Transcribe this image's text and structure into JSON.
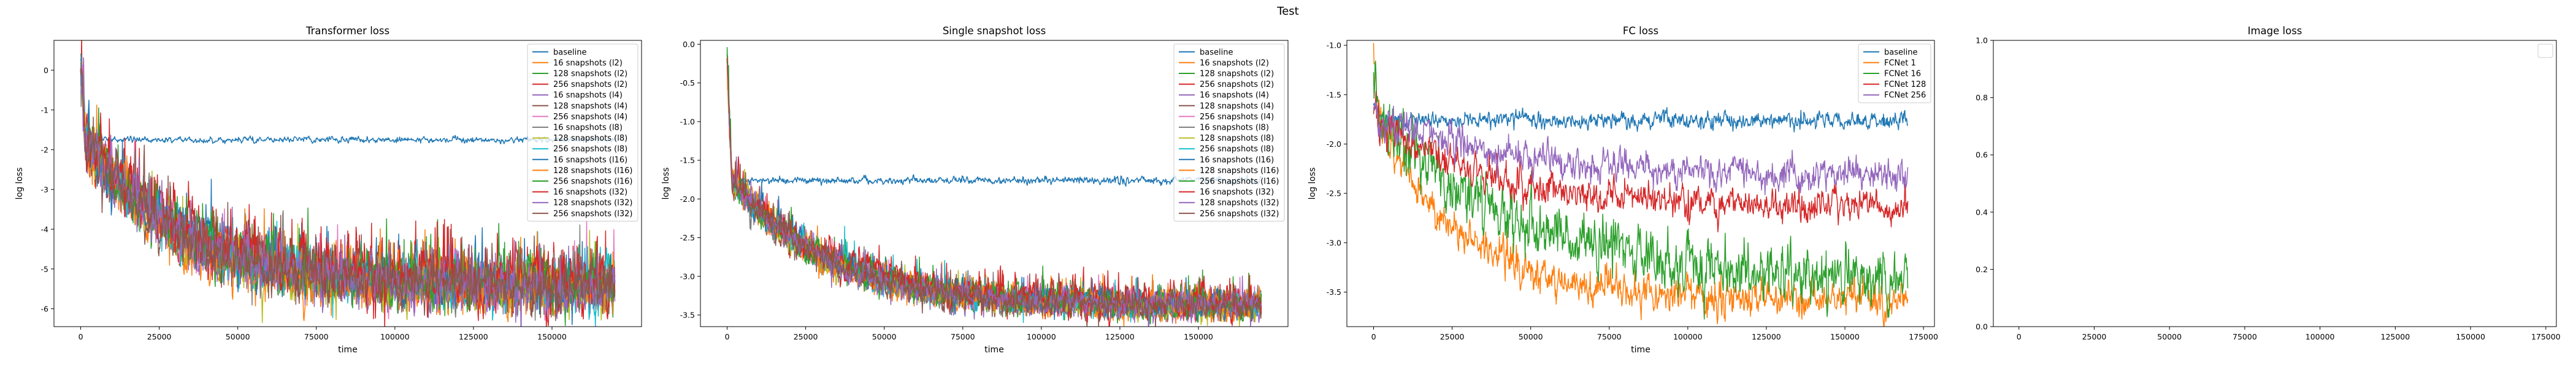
{
  "figure": {
    "suptitle": "Test"
  },
  "colors": {
    "tab10": [
      "#1f77b4",
      "#ff7f0e",
      "#2ca02c",
      "#d62728",
      "#9467bd",
      "#8c564b",
      "#e377c2",
      "#7f7f7f",
      "#bcbd22",
      "#17becf"
    ]
  },
  "chart_data": [
    {
      "type": "line",
      "title": "Transformer loss",
      "xlabel": "time",
      "ylabel": "log loss",
      "xlim": [
        -8500,
        178500
      ],
      "ylim": [
        -6.45,
        0.75
      ],
      "xticks": [
        0,
        25000,
        50000,
        75000,
        100000,
        125000,
        150000
      ],
      "yticks": [
        0,
        -1,
        -2,
        -3,
        -4,
        -5,
        -6
      ],
      "legend": "top-right",
      "x_range": [
        0,
        170000
      ],
      "series": [
        {
          "name": "baseline",
          "color": "#1f77b4",
          "start": 0.3,
          "plateau": -1.72,
          "final": -1.75,
          "tau": 4000,
          "noise": 0.03,
          "spikes": 0.0
        },
        {
          "name": "16 snapshots (l2)",
          "color": "#ff7f0e",
          "start": 0.35,
          "plateau": -1.75,
          "final": -5.55,
          "tau": 28000,
          "noise": 0.25,
          "spikes": 0.06
        },
        {
          "name": "128 snapshots (l2)",
          "color": "#2ca02c",
          "start": 0.3,
          "plateau": -1.75,
          "final": -5.45,
          "tau": 30000,
          "noise": 0.25,
          "spikes": 0.06
        },
        {
          "name": "256 snapshots (l2)",
          "color": "#d62728",
          "start": 0.32,
          "plateau": -1.75,
          "final": -5.35,
          "tau": 32000,
          "noise": 0.28,
          "spikes": 0.08
        },
        {
          "name": "16 snapshots (l4)",
          "color": "#9467bd",
          "start": 0.3,
          "plateau": -1.75,
          "final": -5.5,
          "tau": 29000,
          "noise": 0.25,
          "spikes": 0.06
        },
        {
          "name": "128 snapshots (l4)",
          "color": "#8c564b",
          "start": 0.3,
          "plateau": -1.75,
          "final": -5.45,
          "tau": 30000,
          "noise": 0.25,
          "spikes": 0.06
        },
        {
          "name": "256 snapshots (l4)",
          "color": "#e377c2",
          "start": 0.3,
          "plateau": -1.75,
          "final": -5.4,
          "tau": 31000,
          "noise": 0.25,
          "spikes": 0.06
        },
        {
          "name": "16 snapshots (l8)",
          "color": "#7f7f7f",
          "start": 0.3,
          "plateau": -1.75,
          "final": -5.5,
          "tau": 30000,
          "noise": 0.25,
          "spikes": 0.06
        },
        {
          "name": "128 snapshots (l8)",
          "color": "#bcbd22",
          "start": 0.3,
          "plateau": -1.75,
          "final": -5.5,
          "tau": 29000,
          "noise": 0.25,
          "spikes": 0.06
        },
        {
          "name": "256 snapshots (l8)",
          "color": "#17becf",
          "start": 0.3,
          "plateau": -1.75,
          "final": -5.45,
          "tau": 30000,
          "noise": 0.25,
          "spikes": 0.06
        },
        {
          "name": "16 snapshots (l16)",
          "color": "#1f77b4",
          "start": 0.3,
          "plateau": -1.75,
          "final": -5.4,
          "tau": 31000,
          "noise": 0.25,
          "spikes": 0.06
        },
        {
          "name": "128 snapshots (l16)",
          "color": "#ff7f0e",
          "start": 0.3,
          "plateau": -1.75,
          "final": -5.45,
          "tau": 30000,
          "noise": 0.25,
          "spikes": 0.06
        },
        {
          "name": "256 snapshots (l16)",
          "color": "#2ca02c",
          "start": 0.3,
          "plateau": -1.75,
          "final": -5.4,
          "tau": 31000,
          "noise": 0.25,
          "spikes": 0.06
        },
        {
          "name": "16 snapshots (l32)",
          "color": "#d62728",
          "start": 0.3,
          "plateau": -1.75,
          "final": -5.35,
          "tau": 32000,
          "noise": 0.28,
          "spikes": 0.08
        },
        {
          "name": "128 snapshots (l32)",
          "color": "#9467bd",
          "start": 0.3,
          "plateau": -1.75,
          "final": -5.45,
          "tau": 30000,
          "noise": 0.25,
          "spikes": 0.06
        },
        {
          "name": "256 snapshots (l32)",
          "color": "#8c564b",
          "start": 0.3,
          "plateau": -1.75,
          "final": -5.45,
          "tau": 30000,
          "noise": 0.25,
          "spikes": 0.06
        }
      ]
    },
    {
      "type": "line",
      "title": "Single snapshot loss",
      "xlabel": "time",
      "ylabel": "log loss",
      "xlim": [
        -8500,
        178500
      ],
      "ylim": [
        -3.65,
        0.05
      ],
      "xticks": [
        0,
        25000,
        50000,
        75000,
        100000,
        125000,
        150000
      ],
      "yticks": [
        0.0,
        -0.5,
        -1.0,
        -1.5,
        -2.0,
        -2.5,
        -3.0,
        -3.5
      ],
      "legend": "top-right",
      "x_range": [
        0,
        170000
      ],
      "series": [
        {
          "name": "baseline",
          "color": "#1f77b4",
          "start": -0.15,
          "plateau": -1.75,
          "final": -1.76,
          "tau": 4000,
          "noise": 0.02,
          "spikes": 0.0
        },
        {
          "name": "16 snapshots (l2)",
          "color": "#ff7f0e",
          "start": -0.2,
          "plateau": -1.75,
          "final": -3.4,
          "tau": 30000,
          "noise": 0.07,
          "spikes": 0.05
        },
        {
          "name": "128 snapshots (l2)",
          "color": "#2ca02c",
          "start": -0.2,
          "plateau": -1.75,
          "final": -3.38,
          "tau": 30000,
          "noise": 0.07,
          "spikes": 0.05
        },
        {
          "name": "256 snapshots (l2)",
          "color": "#d62728",
          "start": -0.2,
          "plateau": -1.75,
          "final": -3.35,
          "tau": 31000,
          "noise": 0.07,
          "spikes": 0.06
        },
        {
          "name": "16 snapshots (l4)",
          "color": "#9467bd",
          "start": -0.2,
          "plateau": -1.75,
          "final": -3.4,
          "tau": 30000,
          "noise": 0.07,
          "spikes": 0.05
        },
        {
          "name": "128 snapshots (l4)",
          "color": "#8c564b",
          "start": -0.2,
          "plateau": -1.75,
          "final": -3.38,
          "tau": 30000,
          "noise": 0.07,
          "spikes": 0.05
        },
        {
          "name": "256 snapshots (l4)",
          "color": "#e377c2",
          "start": -0.2,
          "plateau": -1.75,
          "final": -3.37,
          "tau": 31000,
          "noise": 0.07,
          "spikes": 0.05
        },
        {
          "name": "16 snapshots (l8)",
          "color": "#7f7f7f",
          "start": -0.2,
          "plateau": -1.75,
          "final": -3.4,
          "tau": 30000,
          "noise": 0.07,
          "spikes": 0.05
        },
        {
          "name": "128 snapshots (l8)",
          "color": "#bcbd22",
          "start": -0.2,
          "plateau": -1.75,
          "final": -3.4,
          "tau": 29000,
          "noise": 0.07,
          "spikes": 0.05
        },
        {
          "name": "256 snapshots (l8)",
          "color": "#17becf",
          "start": -0.2,
          "plateau": -1.75,
          "final": -3.38,
          "tau": 30000,
          "noise": 0.07,
          "spikes": 0.05
        },
        {
          "name": "16 snapshots (l16)",
          "color": "#1f77b4",
          "start": -0.2,
          "plateau": -1.75,
          "final": -3.37,
          "tau": 31000,
          "noise": 0.07,
          "spikes": 0.05
        },
        {
          "name": "128 snapshots (l16)",
          "color": "#ff7f0e",
          "start": -0.2,
          "plateau": -1.75,
          "final": -3.38,
          "tau": 30000,
          "noise": 0.07,
          "spikes": 0.05
        },
        {
          "name": "256 snapshots (l16)",
          "color": "#2ca02c",
          "start": -0.2,
          "plateau": -1.75,
          "final": -3.37,
          "tau": 31000,
          "noise": 0.07,
          "spikes": 0.05
        },
        {
          "name": "16 snapshots (l32)",
          "color": "#d62728",
          "start": -0.2,
          "plateau": -1.75,
          "final": -3.35,
          "tau": 32000,
          "noise": 0.08,
          "spikes": 0.06
        },
        {
          "name": "128 snapshots (l32)",
          "color": "#9467bd",
          "start": -0.2,
          "plateau": -1.75,
          "final": -3.38,
          "tau": 30000,
          "noise": 0.07,
          "spikes": 0.05
        },
        {
          "name": "256 snapshots (l32)",
          "color": "#8c564b",
          "start": -0.2,
          "plateau": -1.75,
          "final": -3.4,
          "tau": 30000,
          "noise": 0.07,
          "spikes": 0.05
        }
      ]
    },
    {
      "type": "line",
      "title": "FC loss",
      "xlabel": "time",
      "ylabel": "log loss",
      "xlim": [
        -8500,
        178500
      ],
      "ylim": [
        -3.85,
        -0.95
      ],
      "xticks": [
        0,
        25000,
        50000,
        75000,
        100000,
        125000,
        150000,
        175000
      ],
      "yticks": [
        -1.0,
        -1.5,
        -2.0,
        -2.5,
        -3.0,
        -3.5
      ],
      "legend": "top-right",
      "x_range": [
        0,
        170000
      ],
      "series": [
        {
          "name": "baseline",
          "color": "#1f77b4",
          "start": -1.6,
          "plateau": -1.75,
          "final": -1.76,
          "tau": 3000,
          "noise": 0.035,
          "spikes": 0.0
        },
        {
          "name": "FCNet 1",
          "color": "#ff7f0e",
          "start": -1.1,
          "plateau": -1.75,
          "final": -3.55,
          "tau": 25000,
          "noise": 0.08,
          "spikes": 0.0
        },
        {
          "name": "FCNet 16",
          "color": "#2ca02c",
          "start": -1.4,
          "plateau": -1.75,
          "final": -3.4,
          "tau": 45000,
          "noise": 0.12,
          "spikes": 0.0
        },
        {
          "name": "FCNet 128",
          "color": "#d62728",
          "start": -1.6,
          "plateau": -1.8,
          "final": -2.65,
          "tau": 40000,
          "noise": 0.07,
          "spikes": 0.0
        },
        {
          "name": "FCNet 256",
          "color": "#9467bd",
          "start": -1.6,
          "plateau": -1.75,
          "final": -2.35,
          "tau": 50000,
          "noise": 0.07,
          "spikes": 0.0
        }
      ]
    },
    {
      "type": "line",
      "title": "Image loss",
      "xlabel": "",
      "ylabel": "",
      "xlim": [
        -8500,
        178500
      ],
      "ylim": [
        0.0,
        1.0
      ],
      "xticks": [
        0,
        25000,
        50000,
        75000,
        100000,
        125000,
        150000,
        175000
      ],
      "yticks": [
        0.0,
        0.2,
        0.4,
        0.6,
        0.8,
        1.0
      ],
      "legend": "top-right",
      "series": []
    }
  ]
}
